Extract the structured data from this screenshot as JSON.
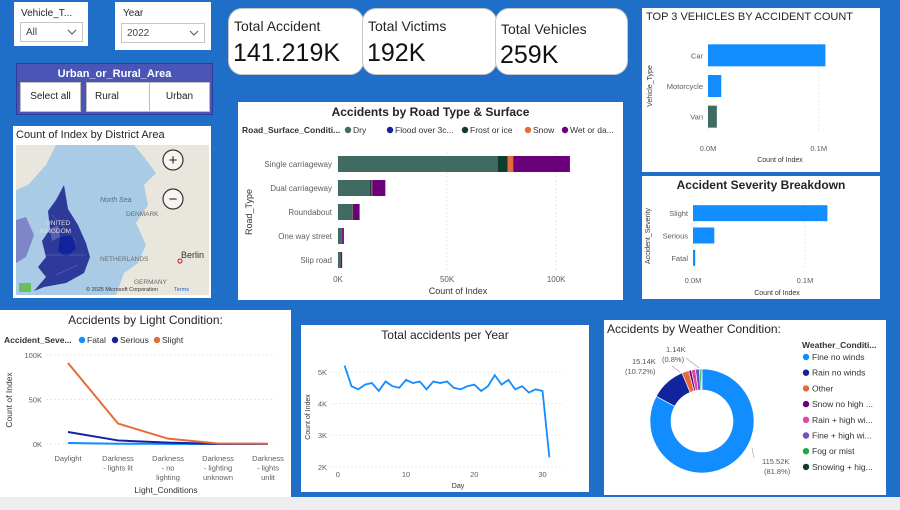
{
  "slicers": {
    "vehicle_type": {
      "label": "Vehicle_T...",
      "value": "All"
    },
    "year": {
      "label": "Year",
      "value": "2022"
    },
    "area": {
      "title": "Urban_or_Rural_Area",
      "buttons": [
        "Select all",
        "Rural",
        "Urban"
      ]
    }
  },
  "kpis": [
    {
      "label": "Total Accident",
      "value": "141.219K"
    },
    {
      "label": "Total Victims",
      "value": "192K"
    },
    {
      "label": "Total Vehicles",
      "value": "259K"
    }
  ],
  "map": {
    "title": "Count of Index by District Area",
    "labels": {
      "north_sea": "North Sea",
      "denmark": "DENMARK",
      "united": "UNITED",
      "kingdom": "KINGDOM",
      "netherlands": "NETHERLANDS",
      "germany": "GERMANY",
      "berlin": "Berlin"
    },
    "copyright": "© 2025 Microsoft Corporation",
    "terms": "Terms",
    "zoom_in": "+",
    "zoom_out": "−"
  },
  "colors": {
    "background": "#1f6fc9",
    "accent": "#118dff",
    "dark_navy": "#12239e",
    "orange": "#e66c37",
    "teal_dark": "#3f6b63",
    "purple": "#6b007b",
    "green": "#1aab40",
    "magenta": "#e044a7",
    "violet": "#744ec2",
    "black_teal": "#0e3b34"
  },
  "footer": {
    "text": ""
  },
  "chart_data": [
    {
      "id": "road_type",
      "type": "bar",
      "orientation": "horizontal",
      "stacked": true,
      "title": "Accidents by Road Type & Surface",
      "legend_title": "Road_Surface_Conditi...",
      "categories": [
        "Single carriageway",
        "Dual carriageway",
        "Roundabout",
        "One way street",
        "Slip road"
      ],
      "series": [
        {
          "name": "Dry",
          "color": "#3f6b63",
          "values": [
            73000,
            14500,
            6500,
            1800,
            1200
          ]
        },
        {
          "name": "Flood over 3c...",
          "color": "#12239e",
          "values": [
            300,
            200,
            0,
            0,
            0
          ]
        },
        {
          "name": "Frost or ice",
          "color": "#0e3b34",
          "values": [
            4500,
            700,
            300,
            100,
            100
          ]
        },
        {
          "name": "Snow",
          "color": "#e66c37",
          "values": [
            2500,
            300,
            100,
            0,
            0
          ]
        },
        {
          "name": "Wet or da...",
          "color": "#6b007b",
          "values": [
            26000,
            6000,
            3000,
            800,
            600
          ]
        }
      ],
      "xlabel": "Count of Index",
      "ylabel": "Road_Type",
      "xticks": [
        0,
        50000,
        100000
      ],
      "xtick_labels": [
        "0K",
        "50K",
        "100K"
      ],
      "xlim": [
        0,
        110000
      ]
    },
    {
      "id": "top3",
      "type": "bar",
      "orientation": "horizontal",
      "title": "TOP 3 VEHICLES BY ACCIDENT COUNT",
      "categories": [
        "Car",
        "Motorcycle",
        "Van"
      ],
      "series": [
        {
          "name": "Count of Index",
          "values": [
            106000,
            12000,
            8000
          ],
          "colors": [
            "#118dff",
            "#118dff",
            "#3f6b63"
          ]
        }
      ],
      "xlabel": "Count of Index",
      "ylabel": "Vehicle_Type",
      "xticks": [
        0,
        100000
      ],
      "xtick_labels": [
        "0.0M",
        "0.1M"
      ],
      "xlim": [
        0,
        130000
      ]
    },
    {
      "id": "severity",
      "type": "bar",
      "orientation": "horizontal",
      "title": "Accident Severity Breakdown",
      "categories": [
        "Slight",
        "Serious",
        "Fatal"
      ],
      "series": [
        {
          "name": "Count of Index",
          "values": [
            120000,
            19000,
            2000
          ],
          "colors": [
            "#118dff",
            "#118dff",
            "#118dff"
          ]
        }
      ],
      "xlabel": "Count of Index",
      "ylabel": "Accident_Severity",
      "xticks": [
        0,
        100000
      ],
      "xtick_labels": [
        "0.0M",
        "0.1M"
      ],
      "xlim": [
        0,
        150000
      ]
    },
    {
      "id": "light",
      "type": "line",
      "title": "Accidents by Light Condition:",
      "legend_title": "Accident_Seve...",
      "categories": [
        "Daylight",
        "Darkness - lights lit",
        "Darkness - no lighting",
        "Darkness - lighting unknown",
        "Darkness - lights unlit"
      ],
      "category_lines": [
        [
          "Daylight"
        ],
        [
          "Darkness",
          "- lights lit"
        ],
        [
          "Darkness",
          "- no",
          "lighting"
        ],
        [
          "Darkness",
          "- lighting",
          "unknown"
        ],
        [
          "Darkness",
          "- lights",
          "unlit"
        ]
      ],
      "series": [
        {
          "name": "Fatal",
          "color": "#118dff",
          "values": [
            1100,
            300,
            200,
            20,
            20
          ]
        },
        {
          "name": "Serious",
          "color": "#12239e",
          "values": [
            13500,
            4000,
            1500,
            100,
            100
          ]
        },
        {
          "name": "Slight",
          "color": "#e66c37",
          "values": [
            91000,
            23000,
            6000,
            500,
            300
          ]
        }
      ],
      "xlabel": "Light_Conditions",
      "ylabel": "Count of Index",
      "yticks": [
        0,
        50000,
        100000
      ],
      "ytick_labels": [
        "0K",
        "50K",
        "100K"
      ],
      "ylim": [
        0,
        100000
      ]
    },
    {
      "id": "per_year",
      "type": "line",
      "title": "Total accidents per Year",
      "x": [
        1,
        2,
        3,
        4,
        5,
        6,
        7,
        8,
        9,
        10,
        11,
        12,
        13,
        14,
        15,
        16,
        17,
        18,
        19,
        20,
        21,
        22,
        23,
        24,
        25,
        26,
        27,
        28,
        29,
        30,
        31
      ],
      "values": [
        5200,
        4550,
        4450,
        4600,
        4650,
        4400,
        4700,
        4550,
        4500,
        4750,
        4650,
        4700,
        4450,
        4700,
        4650,
        4700,
        4500,
        4450,
        4550,
        4600,
        4400,
        4550,
        4900,
        4600,
        4750,
        4450,
        4550,
        4350,
        4450,
        4400,
        2300
      ],
      "color": "#118dff",
      "xlabel": "Day",
      "ylabel": "Count of Index",
      "xticks": [
        0,
        10,
        20,
        30
      ],
      "xtick_labels": [
        "0",
        "10",
        "20",
        "30"
      ],
      "yticks": [
        2000,
        3000,
        4000,
        5000
      ],
      "ytick_labels": [
        "2K",
        "3K",
        "4K",
        "5K"
      ],
      "xlim": [
        -1,
        33
      ],
      "ylim": [
        1900,
        5600
      ]
    },
    {
      "id": "weather",
      "type": "pie",
      "donut": true,
      "title": "Accidents by Weather Condition:",
      "legend_title": "Weather_Conditi...",
      "labels": [
        "Fine no  winds",
        "Rain no winds",
        "Other",
        "Snow no high ...",
        "Rain + high wi...",
        "Fine + high wi...",
        "Fog or mist",
        "Snowing + hig..."
      ],
      "values": [
        115520,
        15140,
        3000,
        1140,
        1800,
        1700,
        700,
        400
      ],
      "colors": [
        "#118dff",
        "#12239e",
        "#e66c37",
        "#6b007b",
        "#e044a7",
        "#744ec2",
        "#1aab40",
        "#0e3b34"
      ],
      "data_labels": {
        "big_value": "115.52K",
        "big_pct": "(81.8%)",
        "mid_value": "15.14K",
        "mid_pct": "(10.72%)",
        "small_value": "1.14K",
        "small_pct": "(0.8%)"
      }
    }
  ]
}
